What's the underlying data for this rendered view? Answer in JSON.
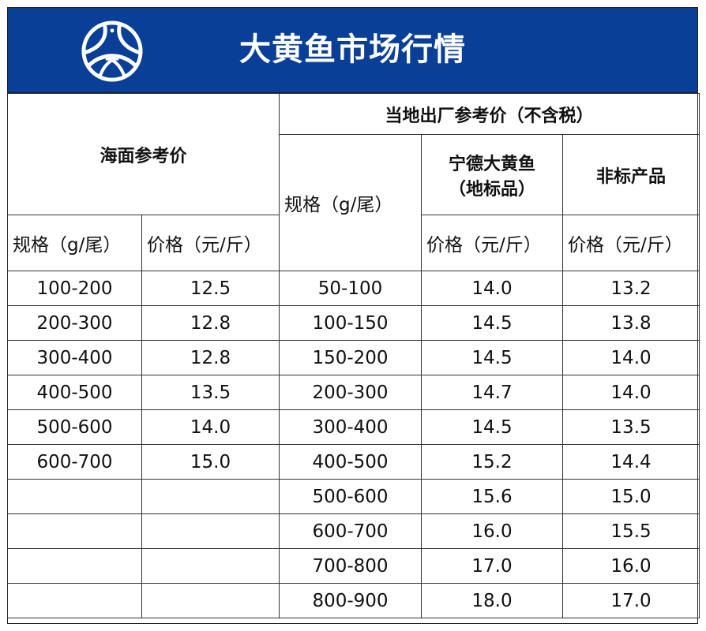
{
  "header": {
    "title": "大黄鱼市场行情",
    "logo_icon": "circular-fish-logo",
    "background_color": "#0a3f97"
  },
  "table": {
    "sea_group": {
      "label": "海面参考价",
      "spec_header": "规格（g/尾）",
      "price_header": "价格（元/斤）"
    },
    "factory_group": {
      "label": "当地出厂参考价（不含税）",
      "spec_header": "规格（g/尾）",
      "ningde_header_line1": "宁德大黄鱼",
      "ningde_header_line2": "（地标品）",
      "nonstd_header": "非标产品",
      "ningde_price_header": "价格（元/斤）",
      "nonstd_price_header": "价格（元/斤）"
    },
    "rows": [
      {
        "sea_spec": "100-200",
        "sea_price": "12.5",
        "fac_spec": "50-100",
        "ningde": "14.0",
        "nonstd": "13.2"
      },
      {
        "sea_spec": "200-300",
        "sea_price": "12.8",
        "fac_spec": "100-150",
        "ningde": "14.5",
        "nonstd": "13.8"
      },
      {
        "sea_spec": "300-400",
        "sea_price": "12.8",
        "fac_spec": "150-200",
        "ningde": "14.5",
        "nonstd": "14.0"
      },
      {
        "sea_spec": "400-500",
        "sea_price": "13.5",
        "fac_spec": "200-300",
        "ningde": "14.7",
        "nonstd": "14.0"
      },
      {
        "sea_spec": "500-600",
        "sea_price": "14.0",
        "fac_spec": "300-400",
        "ningde": "14.5",
        "nonstd": "13.5"
      },
      {
        "sea_spec": "600-700",
        "sea_price": "15.0",
        "fac_spec": "400-500",
        "ningde": "15.2",
        "nonstd": "14.4"
      },
      {
        "sea_spec": "",
        "sea_price": "",
        "fac_spec": "500-600",
        "ningde": "15.6",
        "nonstd": "15.0"
      },
      {
        "sea_spec": "",
        "sea_price": "",
        "fac_spec": "600-700",
        "ningde": "16.0",
        "nonstd": "15.5"
      },
      {
        "sea_spec": "",
        "sea_price": "",
        "fac_spec": "700-800",
        "ningde": "17.0",
        "nonstd": "16.0"
      },
      {
        "sea_spec": "",
        "sea_price": "",
        "fac_spec": "800-900",
        "ningde": "18.0",
        "nonstd": "17.0"
      }
    ]
  }
}
